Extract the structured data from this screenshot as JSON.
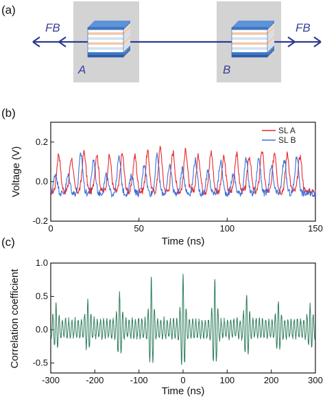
{
  "panel_a": {
    "label": "(a)",
    "fb_left": "FB",
    "fb_right": "FB",
    "node_a": "A",
    "node_b": "B",
    "colors": {
      "line": "#2b3a8f",
      "box": "#d3d3d3",
      "node_text": "#3a3f9a"
    }
  },
  "panel_b": {
    "label": "(b)"
  },
  "panel_c": {
    "label": "(c)"
  },
  "chart_data": [
    {
      "type": "line",
      "title": "",
      "xlabel": "Time (ns)",
      "ylabel": "Voltage (V)",
      "xlim": [
        0,
        150
      ],
      "ylim": [
        -0.2,
        0.3
      ],
      "xticks": [
        0,
        50,
        100,
        150
      ],
      "yticks": [
        -0.2,
        0.0,
        0.2
      ],
      "ytick_labels": [
        "-0.2",
        "0.0",
        "0.2"
      ],
      "legend_position": "top-right",
      "period_ns": 7.2,
      "series": [
        {
          "name": "SL A",
          "color": "#e8262b",
          "peak_times_ns": [
            4.5,
            11.7,
            18.9,
            26.1,
            33.3,
            40.5,
            47.7,
            54.9,
            62.1,
            69.3,
            76.5,
            83.7,
            90.9,
            98.1,
            105.3,
            112.5,
            119.7,
            126.9,
            134.1,
            141.3
          ],
          "peak_values": [
            0.14,
            0.12,
            0.15,
            0.14,
            0.13,
            0.14,
            0.13,
            0.15,
            0.17,
            0.15,
            0.16,
            0.13,
            0.15,
            0.12,
            0.14,
            0.13,
            0.16,
            0.15,
            0.14,
            0.13
          ],
          "baseline": -0.05
        },
        {
          "name": "SL B",
          "color": "#3b6fd8",
          "peak_times_ns": [
            2.7,
            9.9,
            17.1,
            24.3,
            31.5,
            38.7,
            45.9,
            53.1,
            60.3,
            67.5,
            74.7,
            81.9,
            89.1,
            96.3,
            103.5,
            110.7,
            117.9,
            125.1,
            132.3,
            139.5
          ],
          "peak_values": [
            0.04,
            0.03,
            0.14,
            0.11,
            0.03,
            0.12,
            0.03,
            0.09,
            0.13,
            0.08,
            0.06,
            0.11,
            0.05,
            0.1,
            0.04,
            0.11,
            0.12,
            0.07,
            0.11,
            0.13
          ],
          "baseline": -0.06
        }
      ]
    },
    {
      "type": "line",
      "title": "",
      "xlabel": "Time (ns)",
      "ylabel": "Correlation coefficient",
      "xlim": [
        -300,
        300
      ],
      "ylim": [
        -0.65,
        1.0
      ],
      "xticks": [
        -300,
        -200,
        -100,
        0,
        100,
        200,
        300
      ],
      "yticks": [
        -0.5,
        0.0,
        0.5,
        1.0
      ],
      "ytick_labels": [
        "-0.5",
        "0.0",
        "0.5",
        "1.0"
      ],
      "period_ns": 7.2,
      "series": [
        {
          "color": "#2e7d5b",
          "envelope_peak_lags_ns": [
            -288,
            -216,
            -144,
            -72,
            0,
            72,
            144,
            216,
            288
          ],
          "envelope_peak_values": [
            0.38,
            0.42,
            0.55,
            0.75,
            0.81,
            0.75,
            0.55,
            0.42,
            0.38
          ],
          "background_amplitude": 0.15
        }
      ]
    }
  ]
}
